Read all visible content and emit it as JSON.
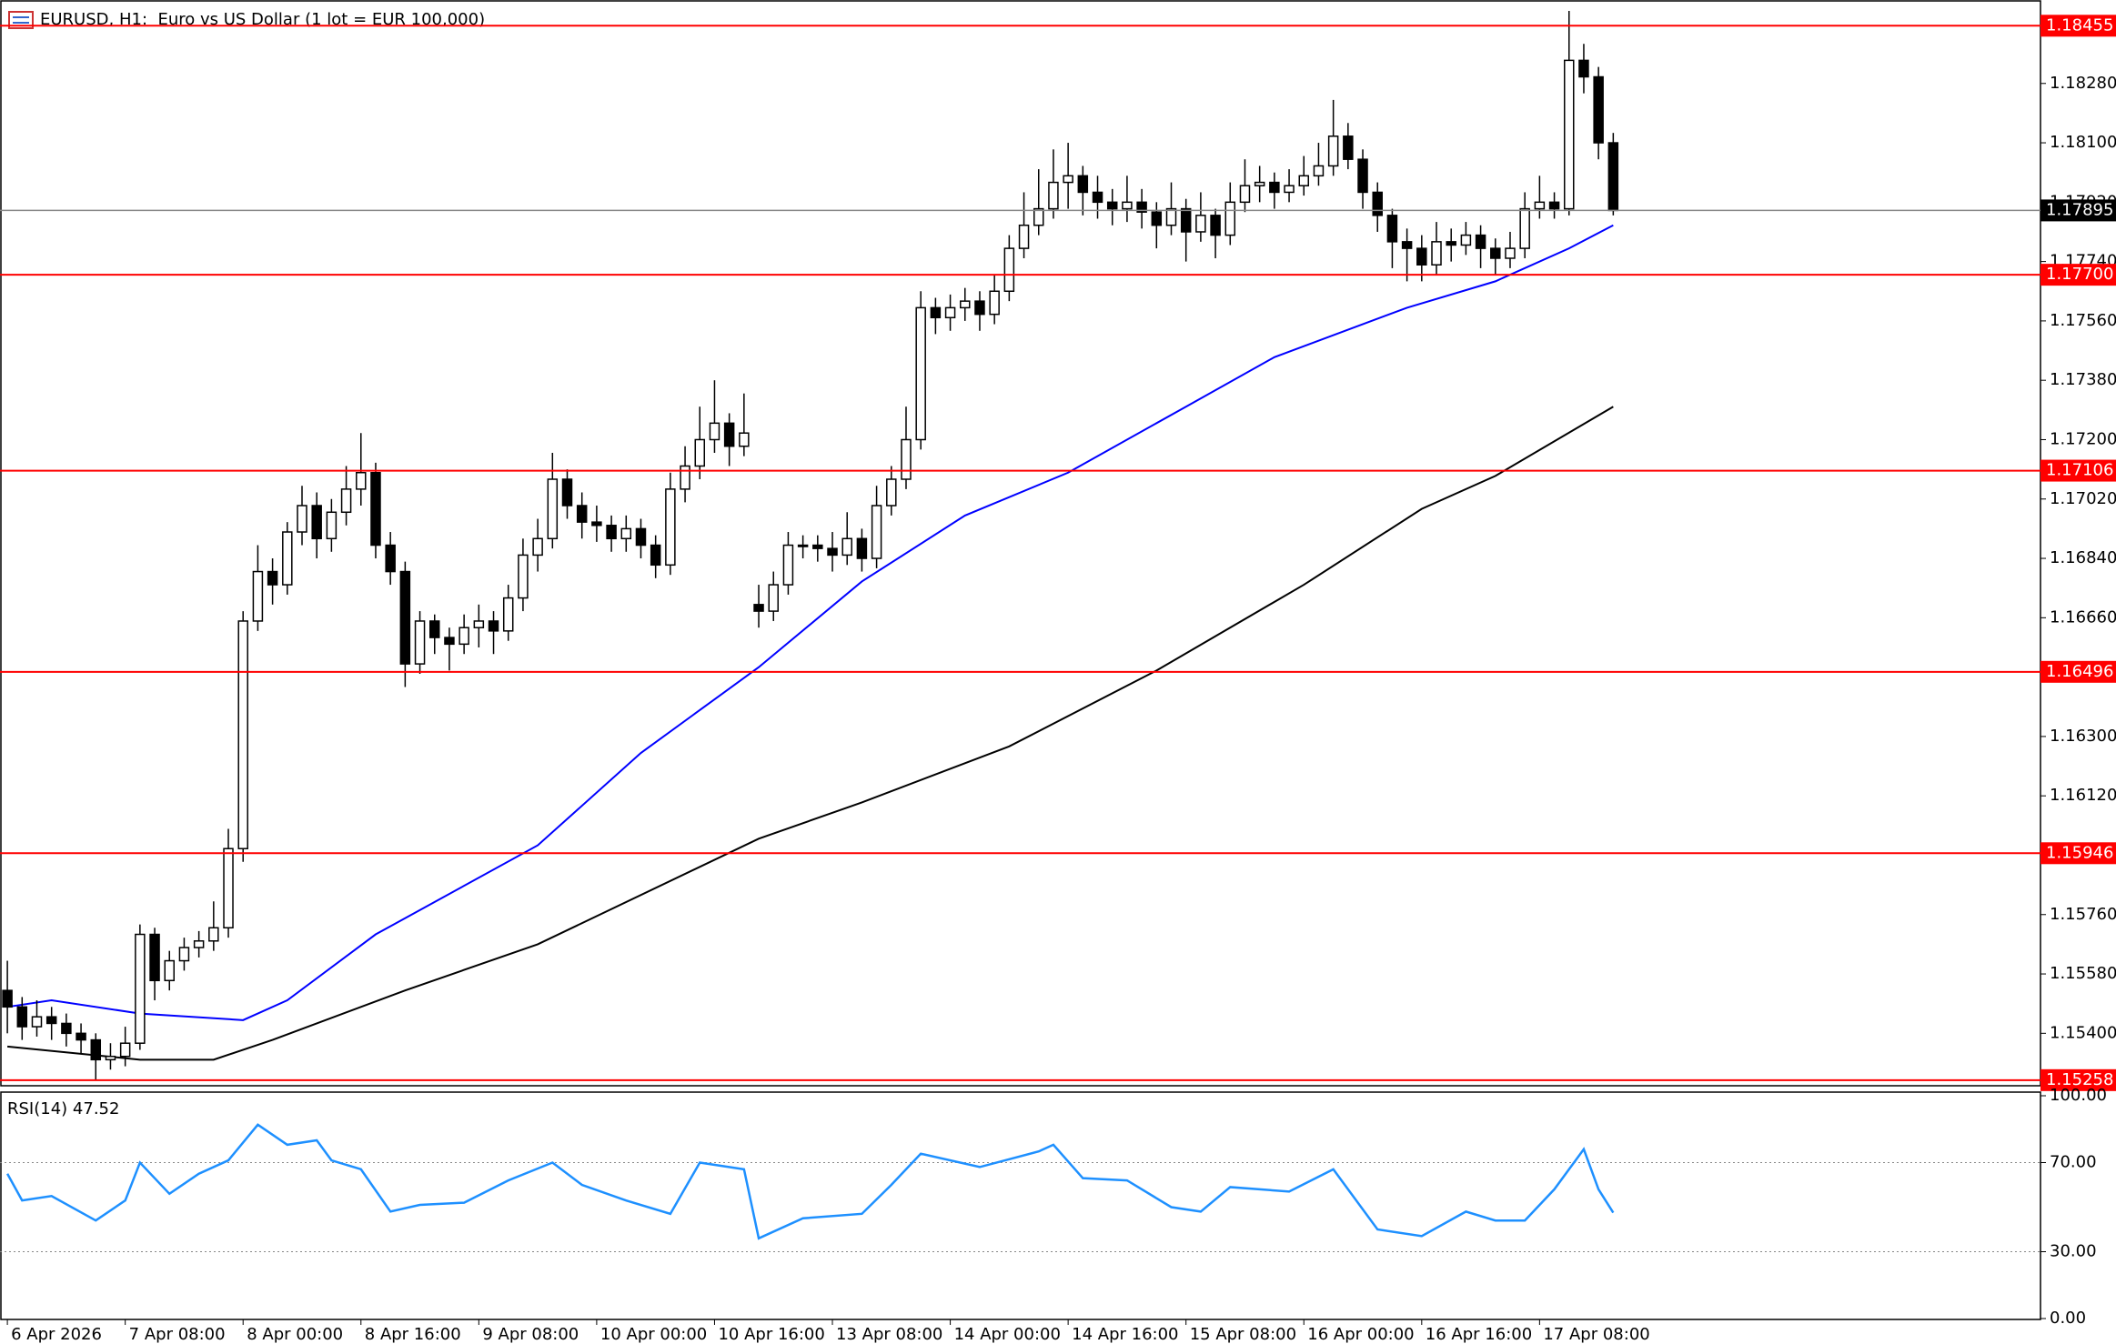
{
  "chart_data": {
    "type": "candlestick",
    "title": "EURUSD, H1:  Euro vs US Dollar (1 lot = EUR 100,000)",
    "xlim": [
      -0.5,
      138
    ],
    "ylim": [
      1.15241,
      1.18533
    ],
    "xticks": [
      {
        "value": 0,
        "label": "6 Apr 2026"
      },
      {
        "value": 8,
        "label": "7 Apr 08:00"
      },
      {
        "value": 16,
        "label": "8 Apr 00:00"
      },
      {
        "value": 24,
        "label": "8 Apr 16:00"
      },
      {
        "value": 32,
        "label": "9 Apr 08:00"
      },
      {
        "value": 40,
        "label": "10 Apr 00:00"
      },
      {
        "value": 48,
        "label": "10 Apr 16:00"
      },
      {
        "value": 56,
        "label": "13 Apr 08:00"
      },
      {
        "value": 64,
        "label": "14 Apr 00:00"
      },
      {
        "value": 72,
        "label": "14 Apr 16:00"
      },
      {
        "value": 80,
        "label": "15 Apr 08:00"
      },
      {
        "value": 88,
        "label": "16 Apr 00:00"
      },
      {
        "value": 96,
        "label": "16 Apr 16:00"
      },
      {
        "value": 104,
        "label": "17 Apr 08:00"
      }
    ],
    "yticks": [
      {
        "value": 1.154,
        "label": "1.15400"
      },
      {
        "value": 1.1558,
        "label": "1.15580"
      },
      {
        "value": 1.1576,
        "label": "1.15760"
      },
      {
        "value": 1.1612,
        "label": "1.16120"
      },
      {
        "value": 1.163,
        "label": "1.16300"
      },
      {
        "value": 1.1666,
        "label": "1.16660"
      },
      {
        "value": 1.1684,
        "label": "1.16840"
      },
      {
        "value": 1.1702,
        "label": "1.17020"
      },
      {
        "value": 1.172,
        "label": "1.17200"
      },
      {
        "value": 1.1738,
        "label": "1.17380"
      },
      {
        "value": 1.1756,
        "label": "1.17560"
      },
      {
        "value": 1.1774,
        "label": "1.17740"
      },
      {
        "value": 1.1792,
        "label": "1.17920"
      },
      {
        "value": 1.181,
        "label": "1.18100"
      },
      {
        "value": 1.1828,
        "label": "1.18280"
      }
    ],
    "levels": [
      {
        "value": 1.18455,
        "label": "1.18455"
      },
      {
        "value": 1.177,
        "label": "1.17700"
      },
      {
        "value": 1.17106,
        "label": "1.17106"
      },
      {
        "value": 1.16496,
        "label": "1.16496"
      },
      {
        "value": 1.15946,
        "label": "1.15946"
      },
      {
        "value": 1.15258,
        "label": "1.15258"
      }
    ],
    "level_color": "#ff0000",
    "current_price": {
      "value": 1.17895,
      "label": "1.17895"
    },
    "candles": [
      [
        1.1553,
        1.1562,
        1.154,
        1.1548
      ],
      [
        1.1548,
        1.1551,
        1.1538,
        1.1542
      ],
      [
        1.1542,
        1.155,
        1.1539,
        1.1545
      ],
      [
        1.1545,
        1.1548,
        1.1538,
        1.1543
      ],
      [
        1.1543,
        1.1546,
        1.1536,
        1.154
      ],
      [
        1.154,
        1.1543,
        1.1534,
        1.1538
      ],
      [
        1.1538,
        1.154,
        1.1526,
        1.1532
      ],
      [
        1.1532,
        1.1537,
        1.1529,
        1.1533
      ],
      [
        1.1533,
        1.1542,
        1.153,
        1.1537
      ],
      [
        1.1537,
        1.1573,
        1.1535,
        1.157
      ],
      [
        1.157,
        1.1572,
        1.155,
        1.1556
      ],
      [
        1.1556,
        1.1565,
        1.1553,
        1.1562
      ],
      [
        1.1562,
        1.1569,
        1.1559,
        1.1566
      ],
      [
        1.1566,
        1.1571,
        1.1563,
        1.1568
      ],
      [
        1.1568,
        1.158,
        1.1565,
        1.1572
      ],
      [
        1.1572,
        1.1602,
        1.1569,
        1.1596
      ],
      [
        1.1596,
        1.1668,
        1.1592,
        1.1665
      ],
      [
        1.1665,
        1.1688,
        1.1662,
        1.168
      ],
      [
        1.168,
        1.1684,
        1.167,
        1.1676
      ],
      [
        1.1676,
        1.1695,
        1.1673,
        1.1692
      ],
      [
        1.1692,
        1.1706,
        1.1688,
        1.17
      ],
      [
        1.17,
        1.1704,
        1.1684,
        1.169
      ],
      [
        1.169,
        1.1702,
        1.1686,
        1.1698
      ],
      [
        1.1698,
        1.1712,
        1.1694,
        1.1705
      ],
      [
        1.1705,
        1.1722,
        1.17,
        1.171
      ],
      [
        1.171,
        1.1713,
        1.1684,
        1.1688
      ],
      [
        1.1688,
        1.1692,
        1.1676,
        1.168
      ],
      [
        1.168,
        1.1683,
        1.1645,
        1.1652
      ],
      [
        1.1652,
        1.1668,
        1.1649,
        1.1665
      ],
      [
        1.1665,
        1.1667,
        1.1655,
        1.166
      ],
      [
        1.166,
        1.1663,
        1.165,
        1.1658
      ],
      [
        1.1658,
        1.1667,
        1.1655,
        1.1663
      ],
      [
        1.1663,
        1.167,
        1.1657,
        1.1665
      ],
      [
        1.1665,
        1.1668,
        1.1655,
        1.1662
      ],
      [
        1.1662,
        1.1676,
        1.1659,
        1.1672
      ],
      [
        1.1672,
        1.169,
        1.1668,
        1.1685
      ],
      [
        1.1685,
        1.1696,
        1.168,
        1.169
      ],
      [
        1.169,
        1.1716,
        1.1687,
        1.1708
      ],
      [
        1.1708,
        1.1711,
        1.1696,
        1.17
      ],
      [
        1.17,
        1.1704,
        1.169,
        1.1695
      ],
      [
        1.1695,
        1.17,
        1.1689,
        1.1694
      ],
      [
        1.1694,
        1.1697,
        1.1686,
        1.169
      ],
      [
        1.169,
        1.1697,
        1.1686,
        1.1693
      ],
      [
        1.1693,
        1.1696,
        1.1684,
        1.1688
      ],
      [
        1.1688,
        1.1691,
        1.1678,
        1.1682
      ],
      [
        1.1682,
        1.171,
        1.1679,
        1.1705
      ],
      [
        1.1705,
        1.1718,
        1.1701,
        1.1712
      ],
      [
        1.1712,
        1.173,
        1.1708,
        1.172
      ],
      [
        1.172,
        1.1738,
        1.1716,
        1.1725
      ],
      [
        1.1725,
        1.1728,
        1.1712,
        1.1718
      ],
      [
        1.1718,
        1.1734,
        1.1715,
        1.1722
      ],
      [
        1.167,
        1.1676,
        1.1663,
        1.1668
      ],
      [
        1.1668,
        1.168,
        1.1665,
        1.1676
      ],
      [
        1.1676,
        1.1692,
        1.1673,
        1.1688
      ],
      [
        1.1688,
        1.1691,
        1.1684,
        1.1688
      ],
      [
        1.1688,
        1.1691,
        1.1683,
        1.1687
      ],
      [
        1.1687,
        1.1692,
        1.168,
        1.1685
      ],
      [
        1.1685,
        1.1698,
        1.1682,
        1.169
      ],
      [
        1.169,
        1.1693,
        1.168,
        1.1684
      ],
      [
        1.1684,
        1.1706,
        1.1681,
        1.17
      ],
      [
        1.17,
        1.1712,
        1.1697,
        1.1708
      ],
      [
        1.1708,
        1.173,
        1.1705,
        1.172
      ],
      [
        1.172,
        1.1765,
        1.1717,
        1.176
      ],
      [
        1.176,
        1.1763,
        1.1752,
        1.1757
      ],
      [
        1.1757,
        1.1764,
        1.1753,
        1.176
      ],
      [
        1.176,
        1.1766,
        1.1756,
        1.1762
      ],
      [
        1.1762,
        1.1765,
        1.1753,
        1.1758
      ],
      [
        1.1758,
        1.177,
        1.1755,
        1.1765
      ],
      [
        1.1765,
        1.1782,
        1.1762,
        1.1778
      ],
      [
        1.1778,
        1.1795,
        1.1775,
        1.1785
      ],
      [
        1.1785,
        1.1802,
        1.1782,
        1.179
      ],
      [
        1.179,
        1.1808,
        1.1787,
        1.1798
      ],
      [
        1.1798,
        1.181,
        1.179,
        1.18
      ],
      [
        1.18,
        1.1803,
        1.1788,
        1.1795
      ],
      [
        1.1795,
        1.18,
        1.1787,
        1.1792
      ],
      [
        1.1792,
        1.1796,
        1.1785,
        1.179
      ],
      [
        1.179,
        1.18,
        1.1786,
        1.1792
      ],
      [
        1.1792,
        1.1796,
        1.1784,
        1.1789
      ],
      [
        1.1789,
        1.1792,
        1.1778,
        1.1785
      ],
      [
        1.1785,
        1.1798,
        1.1782,
        1.179
      ],
      [
        1.179,
        1.1793,
        1.1774,
        1.1783
      ],
      [
        1.1783,
        1.1795,
        1.178,
        1.1788
      ],
      [
        1.1788,
        1.179,
        1.1775,
        1.1782
      ],
      [
        1.1782,
        1.1798,
        1.1779,
        1.1792
      ],
      [
        1.1792,
        1.1805,
        1.1789,
        1.1797
      ],
      [
        1.1797,
        1.1803,
        1.1792,
        1.1798
      ],
      [
        1.1798,
        1.1801,
        1.179,
        1.1795
      ],
      [
        1.1795,
        1.1802,
        1.1792,
        1.1797
      ],
      [
        1.1797,
        1.1806,
        1.1794,
        1.18
      ],
      [
        1.18,
        1.181,
        1.1797,
        1.1803
      ],
      [
        1.1803,
        1.1823,
        1.18,
        1.1812
      ],
      [
        1.1812,
        1.1816,
        1.1802,
        1.1805
      ],
      [
        1.1805,
        1.1808,
        1.179,
        1.1795
      ],
      [
        1.1795,
        1.1798,
        1.1783,
        1.1788
      ],
      [
        1.1788,
        1.179,
        1.1772,
        1.178
      ],
      [
        1.178,
        1.1784,
        1.1768,
        1.1778
      ],
      [
        1.1778,
        1.1782,
        1.1768,
        1.1773
      ],
      [
        1.1773,
        1.1786,
        1.177,
        1.178
      ],
      [
        1.178,
        1.1784,
        1.1774,
        1.1779
      ],
      [
        1.1779,
        1.1786,
        1.1776,
        1.1782
      ],
      [
        1.1782,
        1.1785,
        1.1772,
        1.1778
      ],
      [
        1.1778,
        1.1781,
        1.177,
        1.1775
      ],
      [
        1.1775,
        1.1783,
        1.1772,
        1.1778
      ],
      [
        1.1778,
        1.1795,
        1.1775,
        1.179
      ],
      [
        1.179,
        1.18,
        1.1787,
        1.1792
      ],
      [
        1.1792,
        1.1795,
        1.1787,
        1.179
      ],
      [
        1.179,
        1.185,
        1.1788,
        1.1835
      ],
      [
        1.1835,
        1.184,
        1.1825,
        1.183
      ],
      [
        1.183,
        1.1833,
        1.1805,
        1.181
      ],
      [
        1.181,
        1.1813,
        1.1788,
        1.17895
      ]
    ],
    "moving_averages": [
      {
        "color": "#0000ff",
        "x": [
          0,
          3,
          9,
          16,
          19,
          25,
          36,
          43,
          51,
          58,
          65,
          72,
          80,
          86,
          95,
          101,
          106,
          109
        ],
        "values": [
          1.1548,
          1.155,
          1.1546,
          1.1544,
          1.155,
          1.157,
          1.1597,
          1.1625,
          1.1651,
          1.1677,
          1.1697,
          1.171,
          1.173,
          1.1745,
          1.176,
          1.1768,
          1.1778,
          1.1785
        ]
      },
      {
        "color": "#000000",
        "x": [
          0,
          9,
          14,
          18,
          27,
          36,
          51,
          58,
          68,
          78,
          88,
          96,
          101,
          109
        ],
        "values": [
          1.1536,
          1.1532,
          1.1532,
          1.1538,
          1.1553,
          1.1567,
          1.1599,
          1.161,
          1.1627,
          1.165,
          1.1676,
          1.1699,
          1.1709,
          1.173
        ]
      }
    ],
    "rsi": {
      "title": "RSI(14) 47.52",
      "color": "#1e90ff",
      "ylim": [
        0,
        100
      ],
      "yticks": [
        {
          "value": 100,
          "label": "100.00"
        },
        {
          "value": 70,
          "label": "70.00"
        },
        {
          "value": 30,
          "label": "30.00"
        },
        {
          "value": 0,
          "label": "0.00"
        }
      ],
      "x": [
        0,
        1,
        3,
        6,
        8,
        9,
        11,
        13,
        15,
        17,
        19,
        21,
        22,
        24,
        26,
        28,
        31,
        34,
        37,
        39,
        42,
        45,
        47,
        50,
        51,
        54,
        58,
        60,
        62,
        66,
        70,
        71,
        73,
        76,
        79,
        81,
        83,
        87,
        90,
        93,
        96,
        99,
        101,
        103,
        105,
        107,
        108,
        109
      ],
      "values": [
        65,
        53,
        55,
        44,
        53,
        70,
        56,
        65,
        71,
        87,
        78,
        80,
        71,
        67,
        48,
        51,
        52,
        62,
        70,
        60,
        53,
        47,
        70,
        67,
        36,
        45,
        47,
        60,
        74,
        68,
        75,
        78,
        63,
        62,
        50,
        48,
        59,
        57,
        67,
        40,
        37,
        48,
        44,
        44,
        58,
        76,
        58,
        47.52
      ]
    }
  }
}
